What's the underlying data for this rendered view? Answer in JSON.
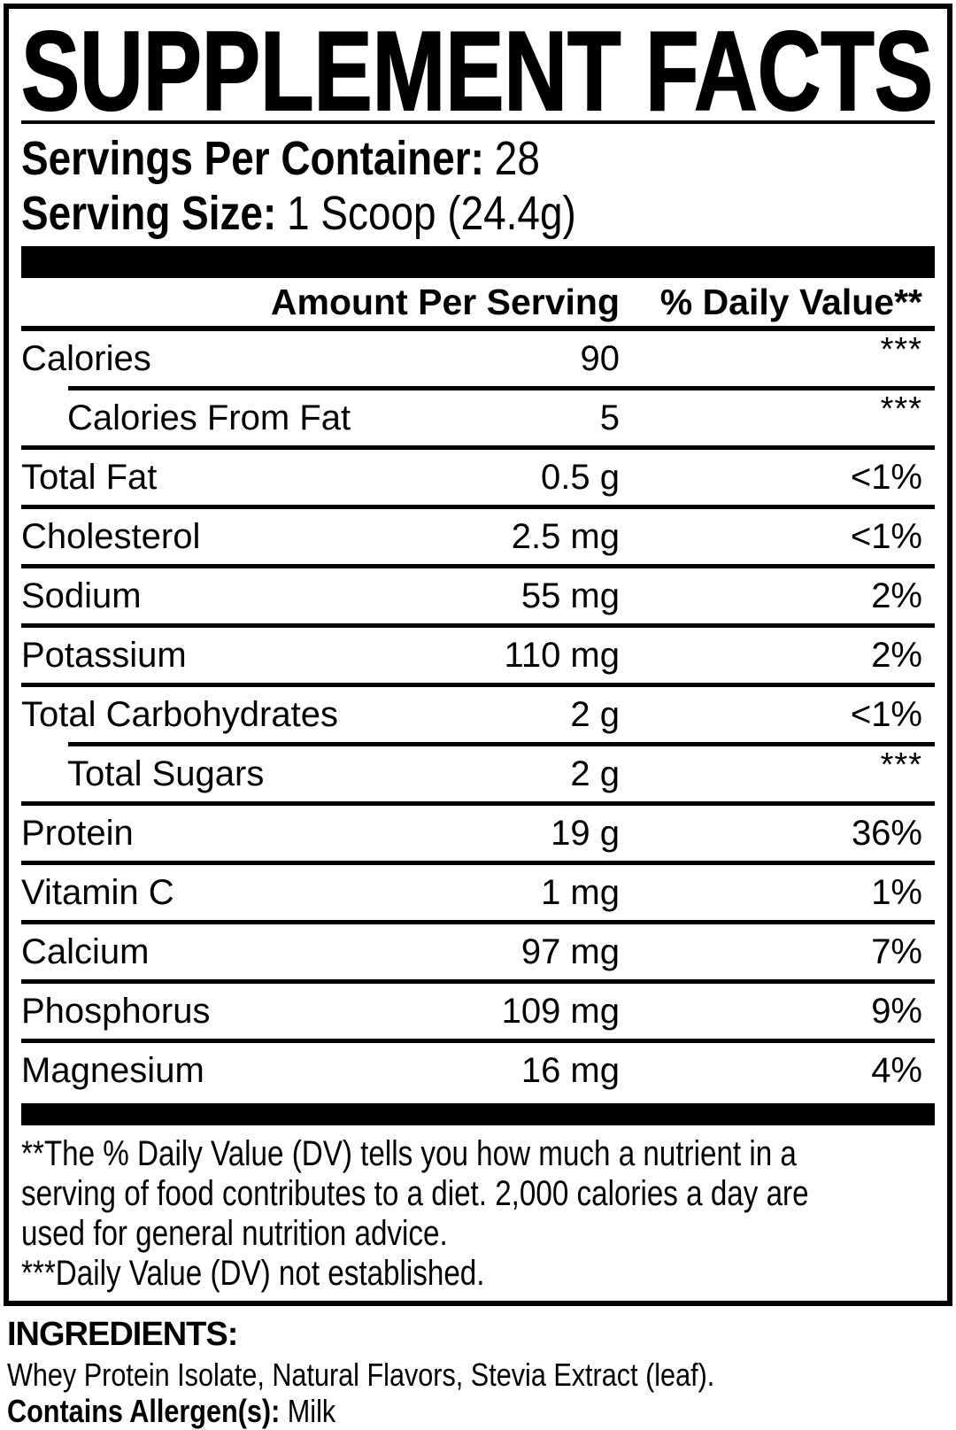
{
  "title": "SUPPLEMENT FACTS",
  "serving_info": {
    "servings_label": "Servings Per Container:",
    "servings_value": "28",
    "size_label": "Serving Size:",
    "size_value": "1 Scoop (24.4g)"
  },
  "table": {
    "col_amount": "Amount Per Serving",
    "col_dv": "% Daily Value**",
    "rows": [
      {
        "label": "Calories",
        "amount": "90",
        "dv": "***",
        "indent": false,
        "raised": true
      },
      {
        "label": "Calories From Fat",
        "amount": "5",
        "dv": "***",
        "indent": true,
        "raised": true
      },
      {
        "label": "Total Fat",
        "amount": "0.5 g",
        "dv": "<1%",
        "indent": false,
        "raised": false
      },
      {
        "label": "Cholesterol",
        "amount": "2.5 mg",
        "dv": "<1%",
        "indent": false,
        "raised": false
      },
      {
        "label": "Sodium",
        "amount": "55 mg",
        "dv": "2%",
        "indent": false,
        "raised": false
      },
      {
        "label": "Potassium",
        "amount": "110 mg",
        "dv": "2%",
        "indent": false,
        "raised": false
      },
      {
        "label": "Total Carbohydrates",
        "amount": "2 g",
        "dv": "<1%",
        "indent": false,
        "raised": false
      },
      {
        "label": "Total Sugars",
        "amount": "2 g",
        "dv": "***",
        "indent": true,
        "raised": true
      },
      {
        "label": "Protein",
        "amount": "19 g",
        "dv": "36%",
        "indent": false,
        "raised": false
      },
      {
        "label": "Vitamin C",
        "amount": "1 mg",
        "dv": "1%",
        "indent": false,
        "raised": false
      },
      {
        "label": "Calcium",
        "amount": "97 mg",
        "dv": "7%",
        "indent": false,
        "raised": false
      },
      {
        "label": "Phosphorus",
        "amount": "109 mg",
        "dv": "9%",
        "indent": false,
        "raised": false
      },
      {
        "label": "Magnesium",
        "amount": "16 mg",
        "dv": "4%",
        "indent": false,
        "raised": false
      }
    ]
  },
  "footnotes": {
    "dv_lines": [
      "**The % Daily Value (DV) tells you how much a nutrient in a",
      "serving of food contributes to a diet. 2,000 calories a day are",
      "used for general nutrition advice."
    ],
    "not_established": "***Daily Value (DV) not established."
  },
  "ingredients": {
    "heading": "INGREDIENTS:",
    "list": "Whey Protein Isolate, Natural Flavors, Stevia Extract (leaf).",
    "allergen_label": "Contains Allergen(s):",
    "allergen_value": "Milk"
  },
  "colors": {
    "ink": "#000000",
    "paper": "#ffffff"
  }
}
